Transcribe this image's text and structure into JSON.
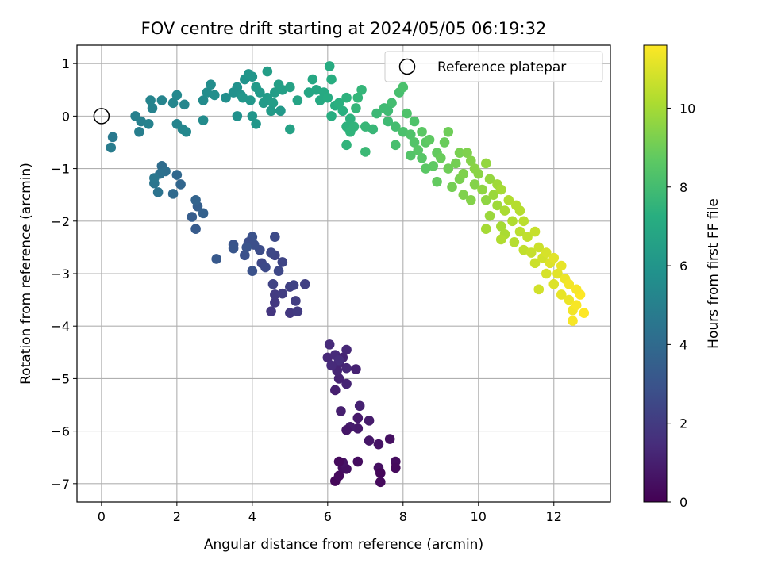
{
  "chart_data": {
    "type": "scatter",
    "title": "FOV centre drift starting at 2024/05/05 06:19:32",
    "xlabel": "Angular distance from reference (arcmin)",
    "ylabel": "Rotation from reference (arcmin)",
    "xlim": [
      -0.65,
      13.5
    ],
    "ylim": [
      -7.35,
      1.35
    ],
    "x_ticks": [
      0,
      2,
      4,
      6,
      8,
      10,
      12
    ],
    "y_ticks": [
      1,
      0,
      -1,
      -2,
      -3,
      -4,
      -5,
      -6,
      -7
    ],
    "grid": true,
    "legend": {
      "placement": "top-right",
      "entries": [
        "Reference platepar"
      ]
    },
    "reference_point": {
      "x": 0,
      "y": 0,
      "label": "Reference platepar"
    },
    "colorbar": {
      "label": "Hours from first FF file",
      "colormap": "viridis",
      "range": [
        0,
        11.6
      ],
      "ticks": [
        0,
        2,
        4,
        6,
        8,
        10
      ]
    },
    "series": [
      {
        "points": [
          [
            6.2,
            -6.95,
            0.2
          ],
          [
            6.3,
            -6.85,
            0.3
          ],
          [
            6.4,
            -6.7,
            0.4
          ],
          [
            6.5,
            -6.72,
            0.5
          ],
          [
            6.4,
            -6.6,
            0.6
          ],
          [
            6.3,
            -6.58,
            0.3
          ],
          [
            6.8,
            -6.58,
            0.4
          ],
          [
            7.35,
            -6.7,
            0.5
          ],
          [
            7.4,
            -6.8,
            0.2
          ],
          [
            7.4,
            -6.97,
            0.3
          ],
          [
            7.8,
            -6.58,
            0.4
          ],
          [
            7.8,
            -6.7,
            0.3
          ],
          [
            7.65,
            -6.15,
            0.5
          ],
          [
            7.35,
            -6.25,
            0.6
          ],
          [
            7.1,
            -6.18,
            0.7
          ],
          [
            6.8,
            -5.95,
            0.8
          ],
          [
            6.6,
            -5.92,
            0.9
          ],
          [
            6.5,
            -5.98,
            0.7
          ],
          [
            6.8,
            -5.75,
            0.8
          ],
          [
            7.1,
            -5.8,
            0.9
          ],
          [
            6.35,
            -5.62,
            1.0
          ],
          [
            6.85,
            -5.52,
            1.1
          ],
          [
            6.5,
            -5.1,
            1.2
          ],
          [
            6.2,
            -5.22,
            1.0
          ],
          [
            6.3,
            -5.0,
            1.1
          ],
          [
            6.25,
            -4.85,
            1.2
          ],
          [
            6.5,
            -4.8,
            1.3
          ],
          [
            6.75,
            -4.82,
            1.1
          ],
          [
            6.3,
            -4.7,
            1.2
          ],
          [
            6.0,
            -4.6,
            1.3
          ],
          [
            6.2,
            -4.55,
            1.4
          ],
          [
            6.4,
            -4.6,
            1.2
          ],
          [
            6.5,
            -4.45,
            1.3
          ],
          [
            6.05,
            -4.35,
            1.4
          ],
          [
            6.3,
            -4.65,
            1.5
          ],
          [
            6.1,
            -4.75,
            1.4
          ],
          [
            4.5,
            -3.72,
            1.8
          ],
          [
            4.6,
            -3.55,
            1.9
          ],
          [
            4.6,
            -3.4,
            2.0
          ],
          [
            4.8,
            -3.38,
            2.1
          ],
          [
            5.0,
            -3.75,
            1.9
          ],
          [
            5.2,
            -3.72,
            2.0
          ],
          [
            5.15,
            -3.52,
            2.1
          ],
          [
            5.0,
            -3.25,
            2.2
          ],
          [
            5.1,
            -3.22,
            2.3
          ],
          [
            5.4,
            -3.2,
            2.2
          ],
          [
            4.55,
            -3.2,
            2.3
          ],
          [
            4.8,
            -2.78,
            2.4
          ],
          [
            4.7,
            -2.95,
            2.5
          ],
          [
            4.6,
            -2.65,
            2.4
          ],
          [
            4.5,
            -2.6,
            2.5
          ],
          [
            4.6,
            -2.3,
            2.6
          ],
          [
            4.25,
            -2.8,
            2.5
          ],
          [
            4.35,
            -2.88,
            2.6
          ],
          [
            4.2,
            -2.55,
            2.7
          ],
          [
            4.05,
            -2.45,
            2.8
          ],
          [
            4.0,
            -2.3,
            2.9
          ],
          [
            3.9,
            -2.4,
            2.8
          ],
          [
            3.8,
            -2.65,
            2.9
          ],
          [
            3.85,
            -2.5,
            3.0
          ],
          [
            4.0,
            -2.95,
            2.9
          ],
          [
            3.5,
            -2.45,
            3.0
          ],
          [
            3.5,
            -2.52,
            3.1
          ],
          [
            3.05,
            -2.72,
            3.2
          ],
          [
            2.5,
            -2.15,
            3.3
          ],
          [
            2.4,
            -1.92,
            3.4
          ],
          [
            2.55,
            -1.72,
            3.5
          ],
          [
            2.7,
            -1.85,
            3.6
          ],
          [
            2.5,
            -1.6,
            3.7
          ],
          [
            2.1,
            -1.3,
            3.8
          ],
          [
            2.0,
            -1.12,
            3.9
          ],
          [
            1.9,
            -1.48,
            4.0
          ],
          [
            1.6,
            -0.95,
            4.1
          ],
          [
            1.7,
            -1.05,
            4.2
          ],
          [
            1.55,
            -1.1,
            4.3
          ],
          [
            1.5,
            -1.45,
            4.4
          ],
          [
            1.4,
            -1.28,
            4.5
          ],
          [
            1.4,
            -1.18,
            4.6
          ],
          [
            0.3,
            -0.4,
            4.7
          ],
          [
            0.25,
            -0.6,
            4.8
          ],
          [
            1.0,
            -0.3,
            4.9
          ],
          [
            0.9,
            0.0,
            5.0
          ],
          [
            1.05,
            -0.1,
            5.0
          ],
          [
            1.25,
            -0.15,
            5.1
          ],
          [
            1.35,
            0.15,
            5.1
          ],
          [
            1.3,
            0.3,
            5.2
          ],
          [
            1.6,
            0.3,
            5.2
          ],
          [
            1.9,
            0.25,
            5.3
          ],
          [
            2.2,
            0.22,
            5.3
          ],
          [
            2.0,
            0.4,
            5.4
          ],
          [
            2.0,
            -0.15,
            5.2
          ],
          [
            2.15,
            -0.25,
            5.3
          ],
          [
            2.25,
            -0.3,
            5.4
          ],
          [
            2.7,
            -0.08,
            5.5
          ],
          [
            2.7,
            0.3,
            5.5
          ],
          [
            2.8,
            0.45,
            5.6
          ],
          [
            2.9,
            0.6,
            5.6
          ],
          [
            3.0,
            0.4,
            5.7
          ],
          [
            3.3,
            0.35,
            5.7
          ],
          [
            3.5,
            0.45,
            5.8
          ],
          [
            3.6,
            0.55,
            5.8
          ],
          [
            3.7,
            0.4,
            5.9
          ],
          [
            3.8,
            0.7,
            5.9
          ],
          [
            3.9,
            0.8,
            6.0
          ],
          [
            4.0,
            0.75,
            6.0
          ],
          [
            3.75,
            0.35,
            6.1
          ],
          [
            3.95,
            0.3,
            6.1
          ],
          [
            4.1,
            0.55,
            6.2
          ],
          [
            4.2,
            0.45,
            6.2
          ],
          [
            4.3,
            0.25,
            6.3
          ],
          [
            4.4,
            0.35,
            6.3
          ],
          [
            4.55,
            0.25,
            6.4
          ],
          [
            4.6,
            0.45,
            6.4
          ],
          [
            4.7,
            0.6,
            6.5
          ],
          [
            4.8,
            0.5,
            6.5
          ],
          [
            4.75,
            0.1,
            6.2
          ],
          [
            4.5,
            0.1,
            6.3
          ],
          [
            4.4,
            0.85,
            6.4
          ],
          [
            4.0,
            0.0,
            6.0
          ],
          [
            4.1,
            -0.15,
            6.1
          ],
          [
            3.6,
            0.0,
            5.8
          ],
          [
            5.0,
            0.55,
            6.6
          ],
          [
            5.0,
            -0.25,
            6.6
          ],
          [
            5.2,
            0.3,
            6.7
          ],
          [
            5.5,
            0.45,
            6.8
          ],
          [
            5.6,
            0.7,
            6.9
          ],
          [
            5.7,
            0.5,
            6.9
          ],
          [
            5.8,
            0.3,
            7.0
          ],
          [
            5.9,
            0.45,
            7.0
          ],
          [
            6.0,
            0.35,
            7.1
          ],
          [
            6.05,
            0.95,
            7.1
          ],
          [
            6.1,
            0.7,
            7.2
          ],
          [
            6.2,
            0.2,
            7.2
          ],
          [
            6.1,
            0.0,
            7.2
          ],
          [
            6.3,
            0.25,
            7.3
          ],
          [
            6.4,
            0.1,
            7.3
          ],
          [
            6.5,
            0.35,
            7.4
          ],
          [
            6.6,
            -0.05,
            7.4
          ],
          [
            6.5,
            -0.2,
            7.4
          ],
          [
            6.6,
            -0.3,
            7.5
          ],
          [
            6.5,
            -0.55,
            7.5
          ],
          [
            6.7,
            -0.2,
            7.5
          ],
          [
            6.75,
            0.15,
            7.6
          ],
          [
            6.9,
            0.5,
            7.6
          ],
          [
            6.8,
            0.35,
            7.6
          ],
          [
            7.0,
            -0.2,
            7.7
          ],
          [
            7.2,
            -0.25,
            7.7
          ],
          [
            7.0,
            -0.68,
            7.8
          ],
          [
            7.3,
            0.05,
            7.8
          ],
          [
            7.5,
            0.15,
            7.9
          ],
          [
            7.6,
            -0.1,
            7.9
          ],
          [
            7.7,
            0.25,
            8.0
          ],
          [
            7.8,
            -0.2,
            8.0
          ],
          [
            7.8,
            -0.55,
            8.1
          ],
          [
            7.9,
            0.45,
            8.1
          ],
          [
            8.0,
            0.55,
            8.2
          ],
          [
            8.0,
            -0.3,
            8.2
          ],
          [
            8.1,
            0.05,
            8.3
          ],
          [
            8.2,
            -0.35,
            8.3
          ],
          [
            8.2,
            -0.75,
            8.4
          ],
          [
            8.3,
            -0.5,
            8.4
          ],
          [
            8.4,
            -0.65,
            8.5
          ],
          [
            8.5,
            -0.8,
            8.5
          ],
          [
            8.6,
            -0.5,
            8.6
          ],
          [
            8.5,
            -0.3,
            8.6
          ],
          [
            8.7,
            -0.45,
            8.7
          ],
          [
            8.8,
            -0.95,
            8.7
          ],
          [
            8.9,
            -0.7,
            8.8
          ],
          [
            8.9,
            -1.25,
            8.8
          ],
          [
            9.0,
            -0.8,
            8.9
          ],
          [
            9.1,
            -0.5,
            8.9
          ],
          [
            9.2,
            -0.3,
            9.0
          ],
          [
            9.2,
            -1.0,
            9.0
          ],
          [
            9.3,
            -1.35,
            9.1
          ],
          [
            9.4,
            -0.9,
            9.1
          ],
          [
            9.5,
            -1.2,
            9.2
          ],
          [
            9.5,
            -0.7,
            9.2
          ],
          [
            9.6,
            -1.5,
            9.3
          ],
          [
            9.7,
            -0.7,
            9.3
          ],
          [
            9.8,
            -0.85,
            9.4
          ],
          [
            9.9,
            -1.3,
            9.4
          ],
          [
            9.9,
            -1.0,
            9.5
          ],
          [
            10.0,
            -1.1,
            9.5
          ],
          [
            10.1,
            -1.4,
            9.6
          ],
          [
            10.2,
            -1.6,
            9.6
          ],
          [
            10.2,
            -0.9,
            9.7
          ],
          [
            10.3,
            -1.2,
            9.7
          ],
          [
            10.3,
            -1.9,
            9.8
          ],
          [
            10.4,
            -1.5,
            9.8
          ],
          [
            10.5,
            -1.3,
            9.9
          ],
          [
            10.5,
            -1.7,
            9.9
          ],
          [
            10.6,
            -2.1,
            10.0
          ],
          [
            10.6,
            -1.4,
            10.0
          ],
          [
            10.7,
            -1.8,
            10.1
          ],
          [
            10.7,
            -2.25,
            10.1
          ],
          [
            10.8,
            -1.6,
            10.2
          ],
          [
            10.9,
            -2.0,
            10.2
          ],
          [
            11.0,
            -1.7,
            10.3
          ],
          [
            10.95,
            -2.4,
            10.3
          ],
          [
            11.1,
            -2.2,
            10.4
          ],
          [
            11.2,
            -2.0,
            10.4
          ],
          [
            11.2,
            -2.55,
            10.5
          ],
          [
            11.3,
            -2.3,
            10.5
          ],
          [
            11.4,
            -2.6,
            10.6
          ],
          [
            11.5,
            -2.2,
            10.6
          ],
          [
            11.5,
            -2.8,
            10.7
          ],
          [
            11.6,
            -2.5,
            10.7
          ],
          [
            11.7,
            -2.7,
            10.8
          ],
          [
            11.6,
            -3.3,
            10.8
          ],
          [
            11.8,
            -2.6,
            10.9
          ],
          [
            11.8,
            -3.0,
            10.9
          ],
          [
            11.9,
            -2.8,
            11.0
          ],
          [
            12.0,
            -3.2,
            11.0
          ],
          [
            12.0,
            -2.7,
            11.1
          ],
          [
            12.1,
            -3.0,
            11.1
          ],
          [
            12.2,
            -3.4,
            11.2
          ],
          [
            12.2,
            -2.85,
            11.2
          ],
          [
            12.3,
            -3.1,
            11.3
          ],
          [
            12.4,
            -3.5,
            11.3
          ],
          [
            12.4,
            -3.2,
            11.4
          ],
          [
            12.5,
            -3.7,
            11.4
          ],
          [
            12.5,
            -3.9,
            11.5
          ],
          [
            12.6,
            -3.6,
            11.5
          ],
          [
            12.7,
            -3.4,
            11.6
          ],
          [
            12.8,
            -3.75,
            11.6
          ],
          [
            12.6,
            -3.3,
            11.5
          ],
          [
            10.2,
            -2.15,
            10.0
          ],
          [
            10.6,
            -2.35,
            10.2
          ],
          [
            9.6,
            -1.1,
            9.3
          ],
          [
            8.3,
            -0.1,
            8.3
          ],
          [
            7.6,
            0.1,
            7.9
          ],
          [
            8.6,
            -1.0,
            8.6
          ],
          [
            9.8,
            -1.6,
            9.4
          ],
          [
            11.1,
            -1.8,
            10.3
          ]
        ]
      }
    ]
  }
}
